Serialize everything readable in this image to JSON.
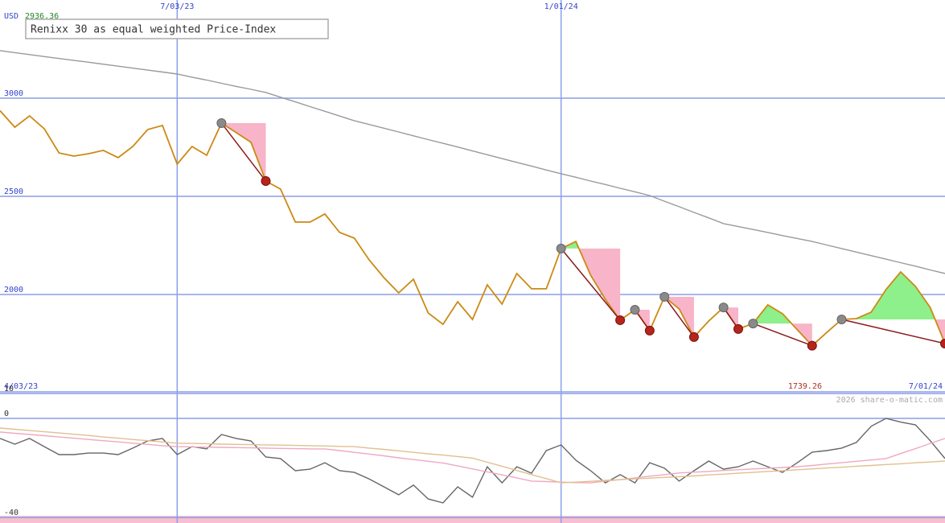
{
  "chart_data": [
    {
      "type": "line",
      "title": "Renixx 30 as equal weighted Price-Index",
      "currency": "USD",
      "last_label": "2936.36",
      "low_label": "1739.26",
      "categories": [
        "4/03/23",
        null,
        null,
        null,
        null,
        null,
        null,
        null,
        null,
        null,
        null,
        null,
        "7/03/23",
        null,
        null,
        null,
        null,
        null,
        null,
        null,
        null,
        null,
        null,
        null,
        null,
        null,
        null,
        null,
        null,
        null,
        null,
        null,
        null,
        null,
        null,
        null,
        null,
        null,
        "1/01/24",
        null,
        null,
        null,
        null,
        null,
        null,
        null,
        null,
        null,
        null,
        null,
        null,
        null,
        null,
        null,
        null,
        null,
        null,
        null,
        null,
        null,
        null,
        null,
        null,
        null,
        "7/01/24"
      ],
      "series": [
        {
          "color": "#cc8a14",
          "values": [
            2936.36,
            2852,
            2910,
            2844,
            2721,
            2705,
            2717,
            2734,
            2697,
            2754,
            2840,
            2861,
            2664,
            2754,
            2709,
            2873,
            2824,
            2775,
            2578,
            2537,
            2369,
            2369,
            2410,
            2316,
            2287,
            2176,
            2086,
            2008,
            2078,
            1906,
            1848,
            1963,
            1873,
            2049,
            1951,
            2107,
            2029,
            2029,
            2234,
            2270,
            2098,
            1975,
            1869,
            1922,
            1816,
            1988,
            1926,
            1783,
            1865,
            1934,
            1824,
            1852,
            1947,
            1902,
            1820,
            1739.26,
            1807,
            1873,
            1877,
            1910,
            2025,
            2115,
            2041,
            1934,
            1750
          ]
        },
        {
          "color": "#9a9a9a",
          "values": [
            3242,
            3232,
            3222,
            3212,
            3202,
            3192,
            3183,
            3173,
            3163,
            3153,
            3143,
            3133,
            3123,
            3107,
            3092,
            3076,
            3060,
            3045,
            3029,
            3005,
            2981,
            2957,
            2933,
            2909,
            2885,
            2866,
            2847,
            2828,
            2808,
            2789,
            2770,
            2751,
            2731,
            2712,
            2692,
            2673,
            2654,
            2634,
            2615,
            2597,
            2578,
            2560,
            2541,
            2523,
            2504,
            2475,
            2447,
            2418,
            2390,
            2361,
            2346,
            2331,
            2316,
            2300,
            2285,
            2270,
            2252,
            2234,
            2216,
            2198,
            2180,
            2162,
            2144,
            2125,
            2107
          ]
        }
      ],
      "swings": [
        [
          15,
          18
        ],
        [
          38,
          42
        ],
        [
          43,
          44
        ],
        [
          45,
          47
        ],
        [
          49,
          50
        ],
        [
          51,
          55
        ],
        [
          57,
          64
        ]
      ],
      "ylim": [
        1504,
        3500
      ],
      "yticks": [
        2000,
        2500,
        3000
      ],
      "grid": true
    },
    {
      "type": "line",
      "credit": "2026 share-o-matic.com",
      "series": [
        {
          "color": "#666666",
          "values": [
            -8.1,
            -10.4,
            -8.1,
            -11.4,
            -14.6,
            -14.6,
            -14,
            -14,
            -14.6,
            -12,
            -9.1,
            -8.1,
            -14.6,
            -11.4,
            -12.3,
            -6.5,
            -8.1,
            -9.1,
            -15.6,
            -16.2,
            -21.1,
            -20.5,
            -17.9,
            -21.1,
            -21.8,
            -24.4,
            -27.6,
            -30.8,
            -26.9,
            -32.5,
            -34.1,
            -27.6,
            -31.8,
            -19.5,
            -26,
            -19.5,
            -22.1,
            -13,
            -10.7,
            -16.9,
            -21.1,
            -26,
            -22.7,
            -26,
            -17.9,
            -20.1,
            -25.3,
            -21.1,
            -17.2,
            -20.5,
            -19.5,
            -17.2,
            -19.5,
            -21.8,
            -17.9,
            -13.6,
            -13,
            -12,
            -9.7,
            -3.2,
            0,
            -1.5,
            -2.6,
            -9,
            -16.2
          ]
        },
        {
          "color": "#f0a8c0",
          "values": [
            -5.5,
            -6,
            -6.5,
            -7,
            -7.5,
            -8,
            -8.5,
            -9,
            -9.5,
            -10,
            -10.5,
            -11,
            -11.4,
            -11.5,
            -11.6,
            -11.7,
            -11.8,
            -11.9,
            -12,
            -12.1,
            -12.2,
            -12.3,
            -12.3,
            -13,
            -13.7,
            -14.4,
            -15.1,
            -15.9,
            -16.6,
            -17.3,
            -18,
            -19.2,
            -20.4,
            -21.6,
            -22.8,
            -24,
            -25.3,
            -25.5,
            -25.7,
            -25.9,
            -26,
            -25.3,
            -24.7,
            -24,
            -23.3,
            -22.7,
            -22,
            -21.7,
            -21.4,
            -21,
            -20.7,
            -20.4,
            -20.1,
            -19.8,
            -19.5,
            -19,
            -18.4,
            -17.9,
            -17.3,
            -16.8,
            -16.2,
            -14.2,
            -12.2,
            -10.1,
            -8.1
          ]
        },
        {
          "color": "#e0c090",
          "values": [
            -3.9,
            -4.4,
            -4.9,
            -5.4,
            -5.9,
            -6.4,
            -6.9,
            -7.5,
            -8,
            -8.5,
            -9,
            -9.5,
            -10,
            -10.1,
            -10.2,
            -10.4,
            -10.5,
            -10.6,
            -10.7,
            -10.8,
            -10.9,
            -11,
            -11.1,
            -11.3,
            -11.4,
            -12,
            -12.5,
            -13.1,
            -13.7,
            -14.3,
            -14.8,
            -15.4,
            -16,
            -17.7,
            -19.3,
            -21,
            -22.7,
            -24.3,
            -26,
            -25.7,
            -25.4,
            -25,
            -24.7,
            -24.4,
            -24.1,
            -23.8,
            -23.5,
            -23.2,
            -22.8,
            -22.5,
            -22.1,
            -21.8,
            -21.4,
            -21.1,
            -20.7,
            -20.4,
            -20,
            -19.7,
            -19.3,
            -19,
            -18.6,
            -18.3,
            -17.9,
            -17.6,
            -17.2
          ]
        }
      ],
      "ylim": [
        -42.2,
        10.7
      ],
      "yticks": [
        10,
        0,
        -40
      ],
      "grid": true
    }
  ]
}
